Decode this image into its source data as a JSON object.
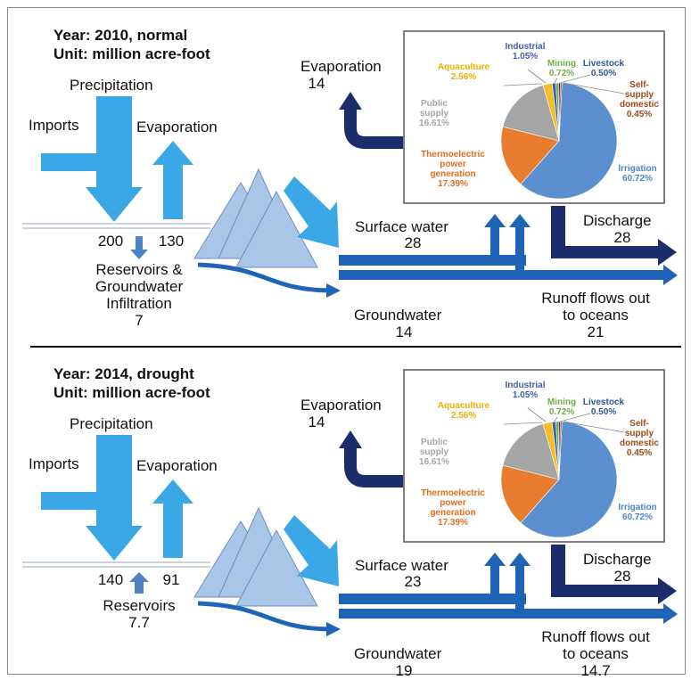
{
  "colors": {
    "flow_arrow": "#3aa8e6",
    "dark_arrow": "#1b2e6b",
    "blue_arrow": "#1f64b6",
    "mountain": "#a9c6e8",
    "pie_irrigation": "#5b8fcf",
    "pie_thermo": "#e97d2f",
    "pie_public": "#a5a5a5",
    "pie_aquaculture": "#f5be27",
    "pie_industrial": "#3d5fa8",
    "pie_mining": "#70ad47",
    "pie_livestock": "#1f3b63",
    "pie_selfsupply": "#9e4a17"
  },
  "panels": [
    {
      "year_line": "Year: 2010, normal",
      "unit_line": "Unit: million acre-foot",
      "precipitation_label": "Precipitation",
      "imports_label": "Imports",
      "evaporation_left_label": "Evaporation",
      "precip_value": "200",
      "evap_left_value": "130",
      "reservoir_lines": [
        "Reservoirs &",
        "Groundwater",
        "Infiltration",
        "7"
      ],
      "evaporation_top_label": "Evaporation",
      "evaporation_top_value": "14",
      "surface_water_label": "Surface water",
      "surface_water_value": "28",
      "groundwater_label": "Groundwater",
      "groundwater_value": "14",
      "discharge_label": "Discharge",
      "discharge_value": "28",
      "runoff_lines": [
        "Runoff flows out",
        "to oceans"
      ],
      "runoff_value": "21"
    },
    {
      "year_line": "Year: 2014, drought",
      "unit_line": "Unit: million acre-foot",
      "precipitation_label": "Precipitation",
      "imports_label": "Imports",
      "evaporation_left_label": "Evaporation",
      "precip_value": "140",
      "evap_left_value": "91",
      "reservoir_lines": [
        "Reservoirs",
        "7.7"
      ],
      "evaporation_top_label": "Evaporation",
      "evaporation_top_value": "14",
      "surface_water_label": "Surface water",
      "surface_water_value": "23",
      "groundwater_label": "Groundwater",
      "groundwater_value": "19",
      "discharge_label": "Discharge",
      "discharge_value": "28",
      "runoff_lines": [
        "Runoff flows out",
        "to oceans"
      ],
      "runoff_value": "14.7"
    }
  ],
  "pie": {
    "slices": [
      {
        "name": "Irrigation",
        "value": 60.72,
        "label": "60.72%",
        "color": "#5b8fcf",
        "label_lines": [
          "Irrigation",
          "60.72%"
        ],
        "label_color": "#4f86c6"
      },
      {
        "name": "Thermoelectric power generation",
        "value": 17.39,
        "label": "17.39%",
        "color": "#e97d2f",
        "label_lines": [
          "Thermoelectric",
          "power",
          "generation",
          "17.39%"
        ],
        "label_color": "#e46c1c"
      },
      {
        "name": "Public supply",
        "value": 16.61,
        "label": "16.61%",
        "color": "#a5a5a5",
        "label_lines": [
          "Public",
          "supply",
          "16.61%"
        ],
        "label_color": "#a5a5a5"
      },
      {
        "name": "Aquaculture",
        "value": 2.56,
        "label": "2.56%",
        "color": "#f5be27",
        "label_lines": [
          "Aquaculture",
          "2.56%"
        ],
        "label_color": "#e8b100"
      },
      {
        "name": "Industrial",
        "value": 1.05,
        "label": "1.05%",
        "color": "#3d5fa8",
        "label_lines": [
          "Industrial",
          "1.05%"
        ],
        "label_color": "#3d5fa8"
      },
      {
        "name": "Mining",
        "value": 0.72,
        "label": "0.72%",
        "color": "#70ad47",
        "label_lines": [
          "Mining",
          "0.72%"
        ],
        "label_color": "#70ad47"
      },
      {
        "name": "Livestock",
        "value": 0.5,
        "label": "0.50%",
        "color": "#1f3b63",
        "label_lines": [
          "Livestock",
          "0.50%"
        ],
        "label_color": "#2e5597"
      },
      {
        "name": "Self-supply domestic",
        "value": 0.45,
        "label": "0.45%",
        "color": "#9e4a17",
        "label_lines": [
          "Self-",
          "supply",
          "domestic",
          "0.45%"
        ],
        "label_color": "#9e4a17"
      }
    ]
  }
}
